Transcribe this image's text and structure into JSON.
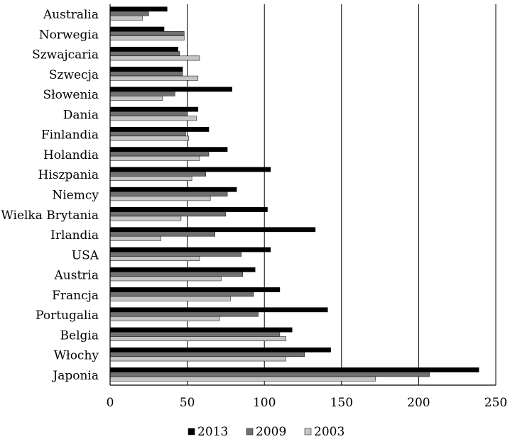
{
  "chart_data": {
    "type": "bar",
    "orientation": "horizontal",
    "categories": [
      "Australia",
      "Norwegia",
      "Szwajcaria",
      "Szwecja",
      "Słowenia",
      "Dania",
      "Finlandia",
      "Holandia",
      "Hiszpania",
      "Niemcy",
      "Wielka Brytania",
      "Irlandia",
      "USA",
      "Austria",
      "Francja",
      "Portugalia",
      "Belgia",
      "Włochy",
      "Japonia"
    ],
    "series": [
      {
        "name": "2013",
        "color": "#000000",
        "values": [
          37,
          35,
          44,
          47,
          79,
          57,
          64,
          76,
          104,
          82,
          102,
          133,
          104,
          94,
          110,
          141,
          118,
          143,
          239
        ]
      },
      {
        "name": "2009",
        "color": "#707070",
        "values": [
          25,
          48,
          45,
          47,
          42,
          50,
          49,
          64,
          62,
          76,
          75,
          68,
          85,
          86,
          93,
          96,
          110,
          126,
          207
        ]
      },
      {
        "name": "2003",
        "color": "#c4c4c4",
        "values": [
          21,
          48,
          58,
          57,
          34,
          56,
          51,
          58,
          53,
          65,
          46,
          33,
          58,
          72,
          78,
          71,
          114,
          114,
          172
        ]
      }
    ],
    "xlim": [
      0,
      250
    ],
    "xticks": [
      0,
      50,
      100,
      150,
      200,
      250
    ],
    "grid": "vertical",
    "legend": "bottom",
    "title": "",
    "xlabel": "",
    "ylabel": ""
  }
}
